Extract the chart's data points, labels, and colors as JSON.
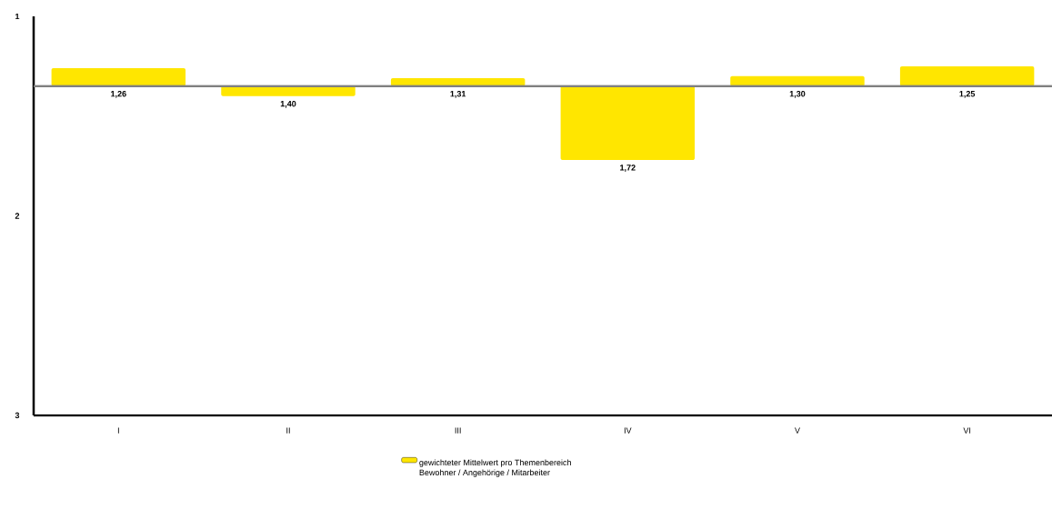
{
  "chart_data": {
    "type": "bar",
    "categories": [
      "I",
      "II",
      "III",
      "IV",
      "V",
      "VI"
    ],
    "series": [
      {
        "name": "gewichteter Mittelwert pro Themenbereich Bewohner / Angehörige / Mitarbeiter",
        "color": "#ffe600",
        "base": [
          1.35,
          1.35,
          1.35,
          1.35,
          1.35,
          1.35
        ],
        "values": [
          -0.09,
          0.05,
          -0.04,
          0.37,
          -0.05,
          -0.1
        ],
        "value_labels": [
          "1,26",
          "1,40",
          "1,31",
          "1,72",
          "1,30",
          "1,25"
        ]
      }
    ],
    "ylim": [
      3,
      1
    ],
    "yticks": [
      1,
      2,
      3
    ],
    "ref_lines": [
      {
        "axis": "y",
        "value": 1.35,
        "color": "#808080"
      }
    ],
    "legend": "bottom"
  }
}
